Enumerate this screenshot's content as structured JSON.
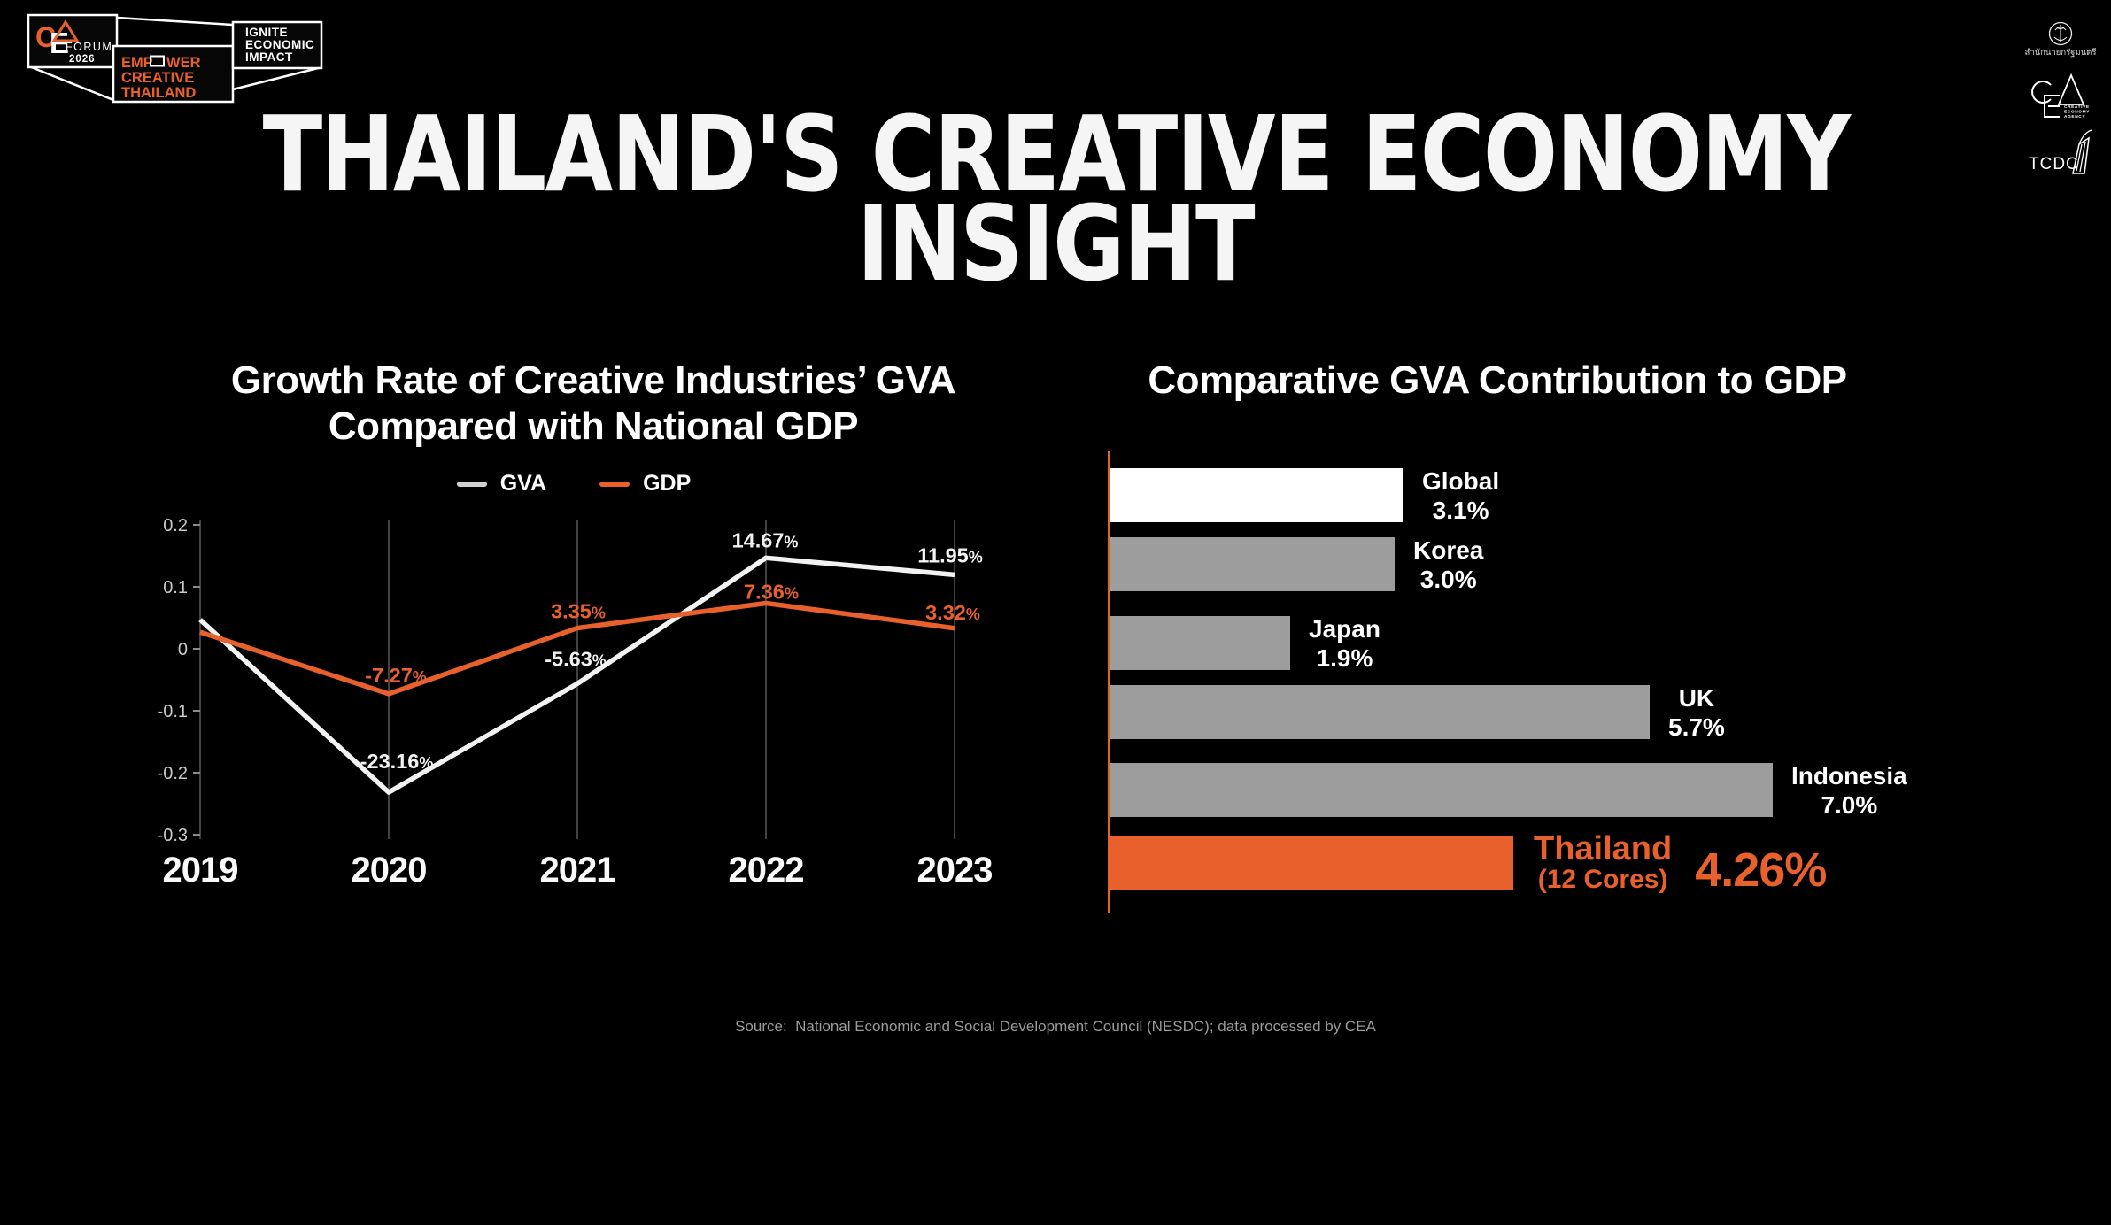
{
  "meta": {
    "background": "#000000",
    "accent_orange": "#E8602C",
    "bar_gray": "#9D9D9D",
    "gva_line_color": "#F2F2F2"
  },
  "header": {
    "forum_badge": {
      "cea_c": "C",
      "cea_e": "E",
      "forum": "FORUM",
      "year": "2026",
      "empower_l1a": "EMP",
      "empower_l1b": "WER",
      "empower_l2": "CREATIVE",
      "empower_l3": "THAILAND",
      "ignite_l1": "IGNITE",
      "ignite_l2": "ECONOMIC",
      "ignite_l3": "IMPACT"
    },
    "partners": {
      "pm_office_thai": "สำนักนายกรัฐมนตรี",
      "cea_sub1": "CREATIVE",
      "cea_sub2": "ECONOMY",
      "cea_sub3": "AGENCY",
      "tcdc": "TCDC"
    }
  },
  "title": {
    "line1": "THAILAND'S CREATIVE ECONOMY",
    "line2": "INSIGHT"
  },
  "left_chart": {
    "title_line1": "Growth Rate of Creative Industries’ GVA",
    "title_line2": "Compared with National GDP",
    "legend": [
      {
        "label": "GVA",
        "color": "#D2D2D2"
      },
      {
        "label": "GDP",
        "color": "#E8602C"
      }
    ]
  },
  "right_chart": {
    "title": "Comparative GVA Contribution to GDP"
  },
  "source": "Source:  National Economic and Social Development Council (NESDC); data processed by CEA",
  "chart_data": [
    {
      "type": "line",
      "title": "Growth Rate of Creative Industries' GVA Compared with National GDP",
      "x": [
        "2019",
        "2020",
        "2021",
        "2022",
        "2023"
      ],
      "yticks": [
        0.2,
        0.1,
        0,
        -0.1,
        -0.2,
        -0.3
      ],
      "ylim": [
        -0.3,
        0.2
      ],
      "grid": "vertical",
      "legend_position": "top",
      "series": [
        {
          "name": "GVA",
          "color": "#F2F2F2",
          "values_pct": [
            4.7,
            -23.16,
            -5.63,
            14.67,
            11.95
          ],
          "point_labels": [
            "",
            "-23.16%",
            "-5.63%",
            "14.67%",
            "11.95%"
          ],
          "first_point_estimated": true
        },
        {
          "name": "GDP",
          "color": "#E8602C",
          "values_pct": [
            2.7,
            -7.27,
            3.35,
            7.36,
            3.32
          ],
          "point_labels": [
            "",
            "-7.27%",
            "3.35%",
            "7.36%",
            "3.32%"
          ],
          "first_point_estimated": true
        }
      ]
    },
    {
      "type": "bar",
      "orientation": "horizontal",
      "title": "Comparative GVA Contribution to GDP",
      "xmax": 7.0,
      "axis_color": "#E8602C",
      "rows": [
        {
          "name": "Global",
          "value": 3.1,
          "label": "3.1%",
          "bar_color": "#FFFFFF"
        },
        {
          "name": "Korea",
          "value": 3.0,
          "label": "3.0%",
          "bar_color": "#9D9D9D"
        },
        {
          "name": "Japan",
          "value": 1.9,
          "label": "1.9%",
          "bar_color": "#9D9D9D"
        },
        {
          "name": "UK",
          "value": 5.7,
          "label": "5.7%",
          "bar_color": "#9D9D9D"
        },
        {
          "name": "Indonesia",
          "value": 7.0,
          "label": "7.0%",
          "bar_color": "#9D9D9D"
        },
        {
          "name": "Thailand",
          "sub_label": "(12 Cores)",
          "value": 4.26,
          "label": "4.26%",
          "bar_color": "#E8602C",
          "highlight": true
        }
      ]
    }
  ]
}
